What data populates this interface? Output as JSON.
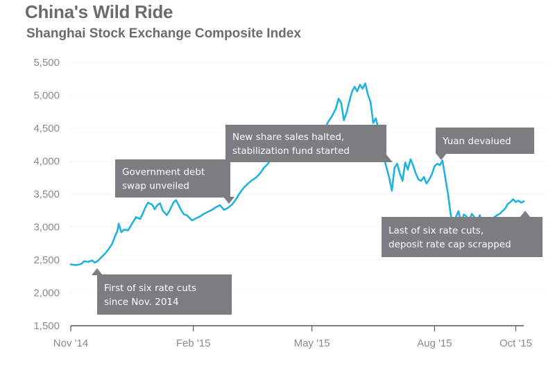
{
  "chart_data": {
    "type": "line",
    "title": "China's Wild Ride",
    "subtitle": "Shanghai Stock Exchange Composite Index",
    "xlabel": "",
    "ylabel": "",
    "ylim": [
      1500,
      5500
    ],
    "y_ticks": [
      {
        "value": 1500,
        "label": "1,500"
      },
      {
        "value": 2000,
        "label": "2,000"
      },
      {
        "value": 2500,
        "label": "2,500"
      },
      {
        "value": 3000,
        "label": "3,000"
      },
      {
        "value": 3500,
        "label": "3,500"
      },
      {
        "value": 4000,
        "label": "4,000"
      },
      {
        "value": 4500,
        "label": "4,500"
      },
      {
        "value": 5000,
        "label": "5,000"
      },
      {
        "value": 5500,
        "label": "5,500"
      }
    ],
    "xlim_days": [
      0,
      340
    ],
    "x_ticks": [
      {
        "day": 0,
        "label": "Nov '14"
      },
      {
        "day": 92,
        "label": "Feb '15"
      },
      {
        "day": 181,
        "label": "May '15"
      },
      {
        "day": 273,
        "label": "Aug '15"
      },
      {
        "day": 334,
        "label": "Oct '15"
      }
    ],
    "series": [
      {
        "name": "Shanghai Composite",
        "color": "#1fb2e0",
        "points": [
          [
            0,
            2430
          ],
          [
            4,
            2420
          ],
          [
            8,
            2440
          ],
          [
            10,
            2480
          ],
          [
            13,
            2470
          ],
          [
            16,
            2490
          ],
          [
            18,
            2460
          ],
          [
            20,
            2480
          ],
          [
            23,
            2540
          ],
          [
            26,
            2600
          ],
          [
            29,
            2680
          ],
          [
            31,
            2740
          ],
          [
            33,
            2850
          ],
          [
            35,
            2940
          ],
          [
            36,
            3050
          ],
          [
            38,
            2920
          ],
          [
            40,
            2960
          ],
          [
            43,
            2950
          ],
          [
            46,
            3050
          ],
          [
            49,
            3150
          ],
          [
            52,
            3120
          ],
          [
            54,
            3200
          ],
          [
            56,
            3300
          ],
          [
            58,
            3370
          ],
          [
            61,
            3340
          ],
          [
            63,
            3270
          ],
          [
            65,
            3330
          ],
          [
            67,
            3360
          ],
          [
            69,
            3250
          ],
          [
            72,
            3180
          ],
          [
            74,
            3240
          ],
          [
            77,
            3370
          ],
          [
            79,
            3410
          ],
          [
            81,
            3330
          ],
          [
            83,
            3250
          ],
          [
            85,
            3190
          ],
          [
            87,
            3180
          ],
          [
            89,
            3140
          ],
          [
            91,
            3100
          ],
          [
            94,
            3130
          ],
          [
            97,
            3160
          ],
          [
            100,
            3200
          ],
          [
            103,
            3230
          ],
          [
            106,
            3260
          ],
          [
            109,
            3300
          ],
          [
            112,
            3330
          ],
          [
            115,
            3260
          ],
          [
            118,
            3290
          ],
          [
            121,
            3340
          ],
          [
            124,
            3420
          ],
          [
            127,
            3520
          ],
          [
            130,
            3600
          ],
          [
            133,
            3660
          ],
          [
            136,
            3710
          ],
          [
            139,
            3750
          ],
          [
            142,
            3810
          ],
          [
            145,
            3900
          ],
          [
            148,
            3960
          ],
          [
            151,
            4050
          ],
          [
            154,
            4150
          ],
          [
            157,
            4250
          ],
          [
            160,
            4290
          ],
          [
            163,
            4400
          ],
          [
            166,
            4480
          ],
          [
            169,
            4540
          ],
          [
            172,
            4480
          ],
          [
            175,
            4520
          ],
          [
            178,
            4430
          ],
          [
            181,
            4300
          ],
          [
            184,
            4180
          ],
          [
            187,
            4330
          ],
          [
            190,
            4460
          ],
          [
            193,
            4590
          ],
          [
            196,
            4680
          ],
          [
            199,
            4800
          ],
          [
            201,
            4950
          ],
          [
            203,
            4880
          ],
          [
            205,
            4620
          ],
          [
            207,
            4740
          ],
          [
            209,
            4900
          ],
          [
            211,
            5050
          ],
          [
            213,
            5130
          ],
          [
            215,
            5060
          ],
          [
            217,
            5160
          ],
          [
            219,
            5100
          ],
          [
            221,
            5180
          ],
          [
            223,
            5010
          ],
          [
            225,
            4900
          ],
          [
            227,
            4580
          ],
          [
            229,
            4650
          ],
          [
            231,
            4480
          ],
          [
            233,
            4280
          ],
          [
            235,
            4050
          ],
          [
            237,
            3900
          ],
          [
            239,
            3750
          ],
          [
            241,
            3550
          ],
          [
            243,
            3900
          ],
          [
            245,
            3960
          ],
          [
            247,
            3810
          ],
          [
            249,
            3700
          ],
          [
            251,
            3980
          ],
          [
            253,
            3870
          ],
          [
            255,
            4030
          ],
          [
            257,
            3930
          ],
          [
            259,
            3810
          ],
          [
            261,
            3720
          ],
          [
            263,
            3700
          ],
          [
            265,
            3760
          ],
          [
            267,
            3660
          ],
          [
            269,
            3720
          ],
          [
            271,
            3800
          ],
          [
            273,
            3920
          ],
          [
            275,
            3960
          ],
          [
            277,
            3940
          ],
          [
            279,
            4010
          ],
          [
            281,
            3760
          ],
          [
            283,
            3520
          ],
          [
            285,
            3210
          ],
          [
            287,
            2960
          ],
          [
            289,
            3150
          ],
          [
            291,
            3240
          ],
          [
            293,
            3060
          ],
          [
            295,
            3190
          ],
          [
            297,
            3160
          ],
          [
            299,
            3100
          ],
          [
            301,
            3200
          ],
          [
            303,
            3150
          ],
          [
            305,
            3080
          ],
          [
            307,
            3180
          ],
          [
            309,
            3050
          ],
          [
            311,
            3080
          ],
          [
            313,
            3100
          ],
          [
            315,
            3090
          ],
          [
            318,
            3150
          ],
          [
            320,
            3180
          ],
          [
            322,
            3200
          ],
          [
            324,
            3240
          ],
          [
            326,
            3280
          ],
          [
            328,
            3350
          ],
          [
            330,
            3380
          ],
          [
            332,
            3420
          ],
          [
            334,
            3380
          ],
          [
            336,
            3400
          ],
          [
            338,
            3370
          ],
          [
            340,
            3390
          ]
        ]
      }
    ],
    "annotations": [
      {
        "id": "first-rate-cut",
        "lines": [
          "First of six rate cuts",
          "since Nov. 2014"
        ],
        "day": 21,
        "value": 2480,
        "placement": "below"
      },
      {
        "id": "debt-swap",
        "lines": [
          "Government debt",
          "swap unveiled"
        ],
        "day": 122,
        "value": 3350,
        "placement": "above"
      },
      {
        "id": "share-sales-halted",
        "lines": [
          "New share sales halted,",
          "stabilization fund started"
        ],
        "day": 240,
        "value": 3960,
        "placement": "left"
      },
      {
        "id": "yuan-devalued",
        "lines": [
          "Yuan devalued"
        ],
        "day": 279,
        "value": 4010,
        "placement": "above"
      },
      {
        "id": "last-rate-cut",
        "lines": [
          "Last of six rate cuts,",
          "deposit rate cap scrapped"
        ],
        "day": 340,
        "value": 3390,
        "placement": "below"
      }
    ],
    "colors": {
      "line": "#1fb2e0",
      "annotation_bg": "#7d7c80",
      "text": "#6b6b6b",
      "tick": "#8a8a8a",
      "gridline": "#dddddd",
      "axis": "#555555"
    },
    "grid": true,
    "legend": "none"
  }
}
